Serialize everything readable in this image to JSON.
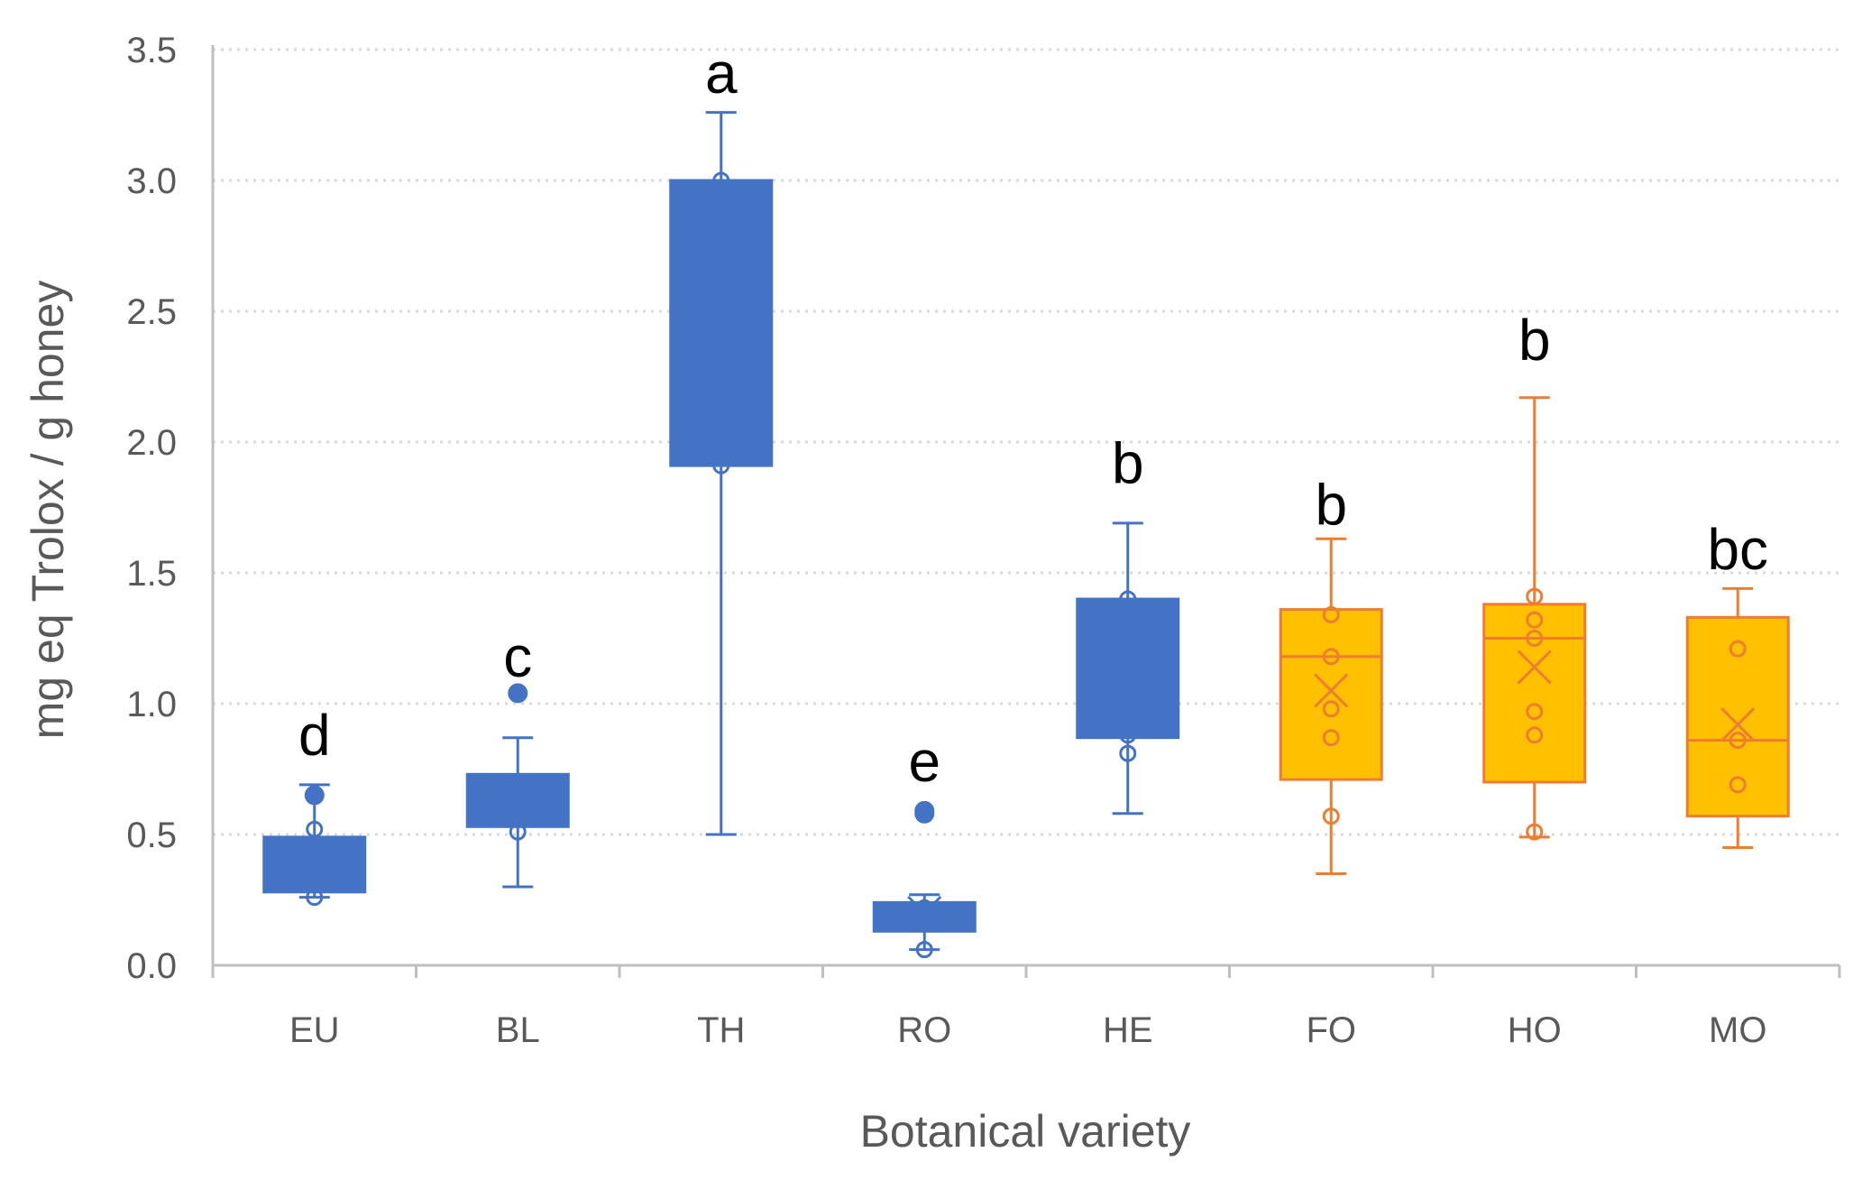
{
  "chart_data": {
    "type": "box",
    "xlabel": "Botanical variety",
    "ylabel": "mg eq Trolox / g honey",
    "ylim": [
      0,
      3.5
    ],
    "yticks": [
      0,
      0.5,
      1,
      1.5,
      2,
      2.5,
      3,
      3.5
    ],
    "ytick_labels": [
      "0.0",
      "0.5",
      "1.0",
      "1.5",
      "2.0",
      "2.5",
      "3.0",
      "3.5"
    ],
    "grid": "horizontal dotted",
    "colors": {
      "blue_fill": "#4472C4",
      "blue_stroke": "#4472C4",
      "orange_fill": "#FFC000",
      "orange_stroke": "#ED7D31",
      "axis": "#BFBFBF",
      "grid": "#D9D9D9",
      "tick_text": "#595959",
      "letter_text": "#000000"
    },
    "categories": [
      "EU",
      "BL",
      "TH",
      "RO",
      "HE",
      "FO",
      "HO",
      "MO"
    ],
    "boxes": [
      {
        "category": "EU",
        "group": "blue",
        "whisker_low": 0.26,
        "q1": 0.28,
        "median": 0.37,
        "q3": 0.49,
        "whisker_high": 0.69,
        "mean": 0.4,
        "points": [
          0.26,
          0.34,
          0.37,
          0.43,
          0.52
        ],
        "outliers": [
          0.65
        ],
        "letter": "d",
        "letter_value": 0.89
      },
      {
        "category": "BL",
        "group": "blue",
        "whisker_low": 0.3,
        "q1": 0.53,
        "median": 0.59,
        "q3": 0.73,
        "whisker_high": 0.87,
        "mean": 0.65,
        "points": [
          0.51,
          0.59,
          0.66
        ],
        "outliers": [
          1.04
        ],
        "letter": "c",
        "letter_value": 1.19
      },
      {
        "category": "TH",
        "group": "blue",
        "whisker_low": 0.5,
        "q1": 1.91,
        "median": 2.1,
        "q3": 3.0,
        "whisker_high": 3.26,
        "mean": 2.21,
        "points": [
          1.91,
          2.02,
          2.1,
          2.7,
          3.0
        ],
        "outliers": [],
        "letter": "a",
        "letter_value": 3.42
      },
      {
        "category": "RO",
        "group": "blue",
        "whisker_low": 0.06,
        "q1": 0.13,
        "median": 0.17,
        "q3": 0.24,
        "whisker_high": 0.27,
        "mean": 0.2,
        "points": [
          0.06,
          0.16,
          0.22
        ],
        "outliers": [
          0.58,
          0.59
        ],
        "letter": "e",
        "letter_value": 0.79
      },
      {
        "category": "HE",
        "group": "blue",
        "whisker_low": 0.58,
        "q1": 0.87,
        "median": 0.98,
        "q3": 1.4,
        "whisker_high": 1.69,
        "mean": 1.07,
        "points": [
          0.81,
          0.88,
          0.97,
          1.1,
          1.4
        ],
        "outliers": [],
        "letter": "b",
        "letter_value": 1.93
      },
      {
        "category": "FO",
        "group": "orange",
        "whisker_low": 0.35,
        "q1": 0.71,
        "median": 1.18,
        "q3": 1.36,
        "whisker_high": 1.63,
        "mean": 1.05,
        "points": [
          0.57,
          0.87,
          0.98,
          1.18,
          1.34
        ],
        "outliers": [],
        "letter": "b",
        "letter_value": 1.77
      },
      {
        "category": "HO",
        "group": "orange",
        "whisker_low": 0.49,
        "q1": 0.7,
        "median": 1.25,
        "q3": 1.38,
        "whisker_high": 2.17,
        "mean": 1.14,
        "points": [
          0.51,
          0.88,
          0.97,
          1.25,
          1.32,
          1.41
        ],
        "outliers": [],
        "letter": "b",
        "letter_value": 2.4
      },
      {
        "category": "MO",
        "group": "orange",
        "whisker_low": 0.45,
        "q1": 0.57,
        "median": 0.86,
        "q3": 1.33,
        "whisker_high": 1.44,
        "mean": 0.92,
        "points": [
          0.69,
          0.86,
          1.21
        ],
        "outliers": [],
        "letter": "bc",
        "letter_value": 1.6
      }
    ]
  }
}
